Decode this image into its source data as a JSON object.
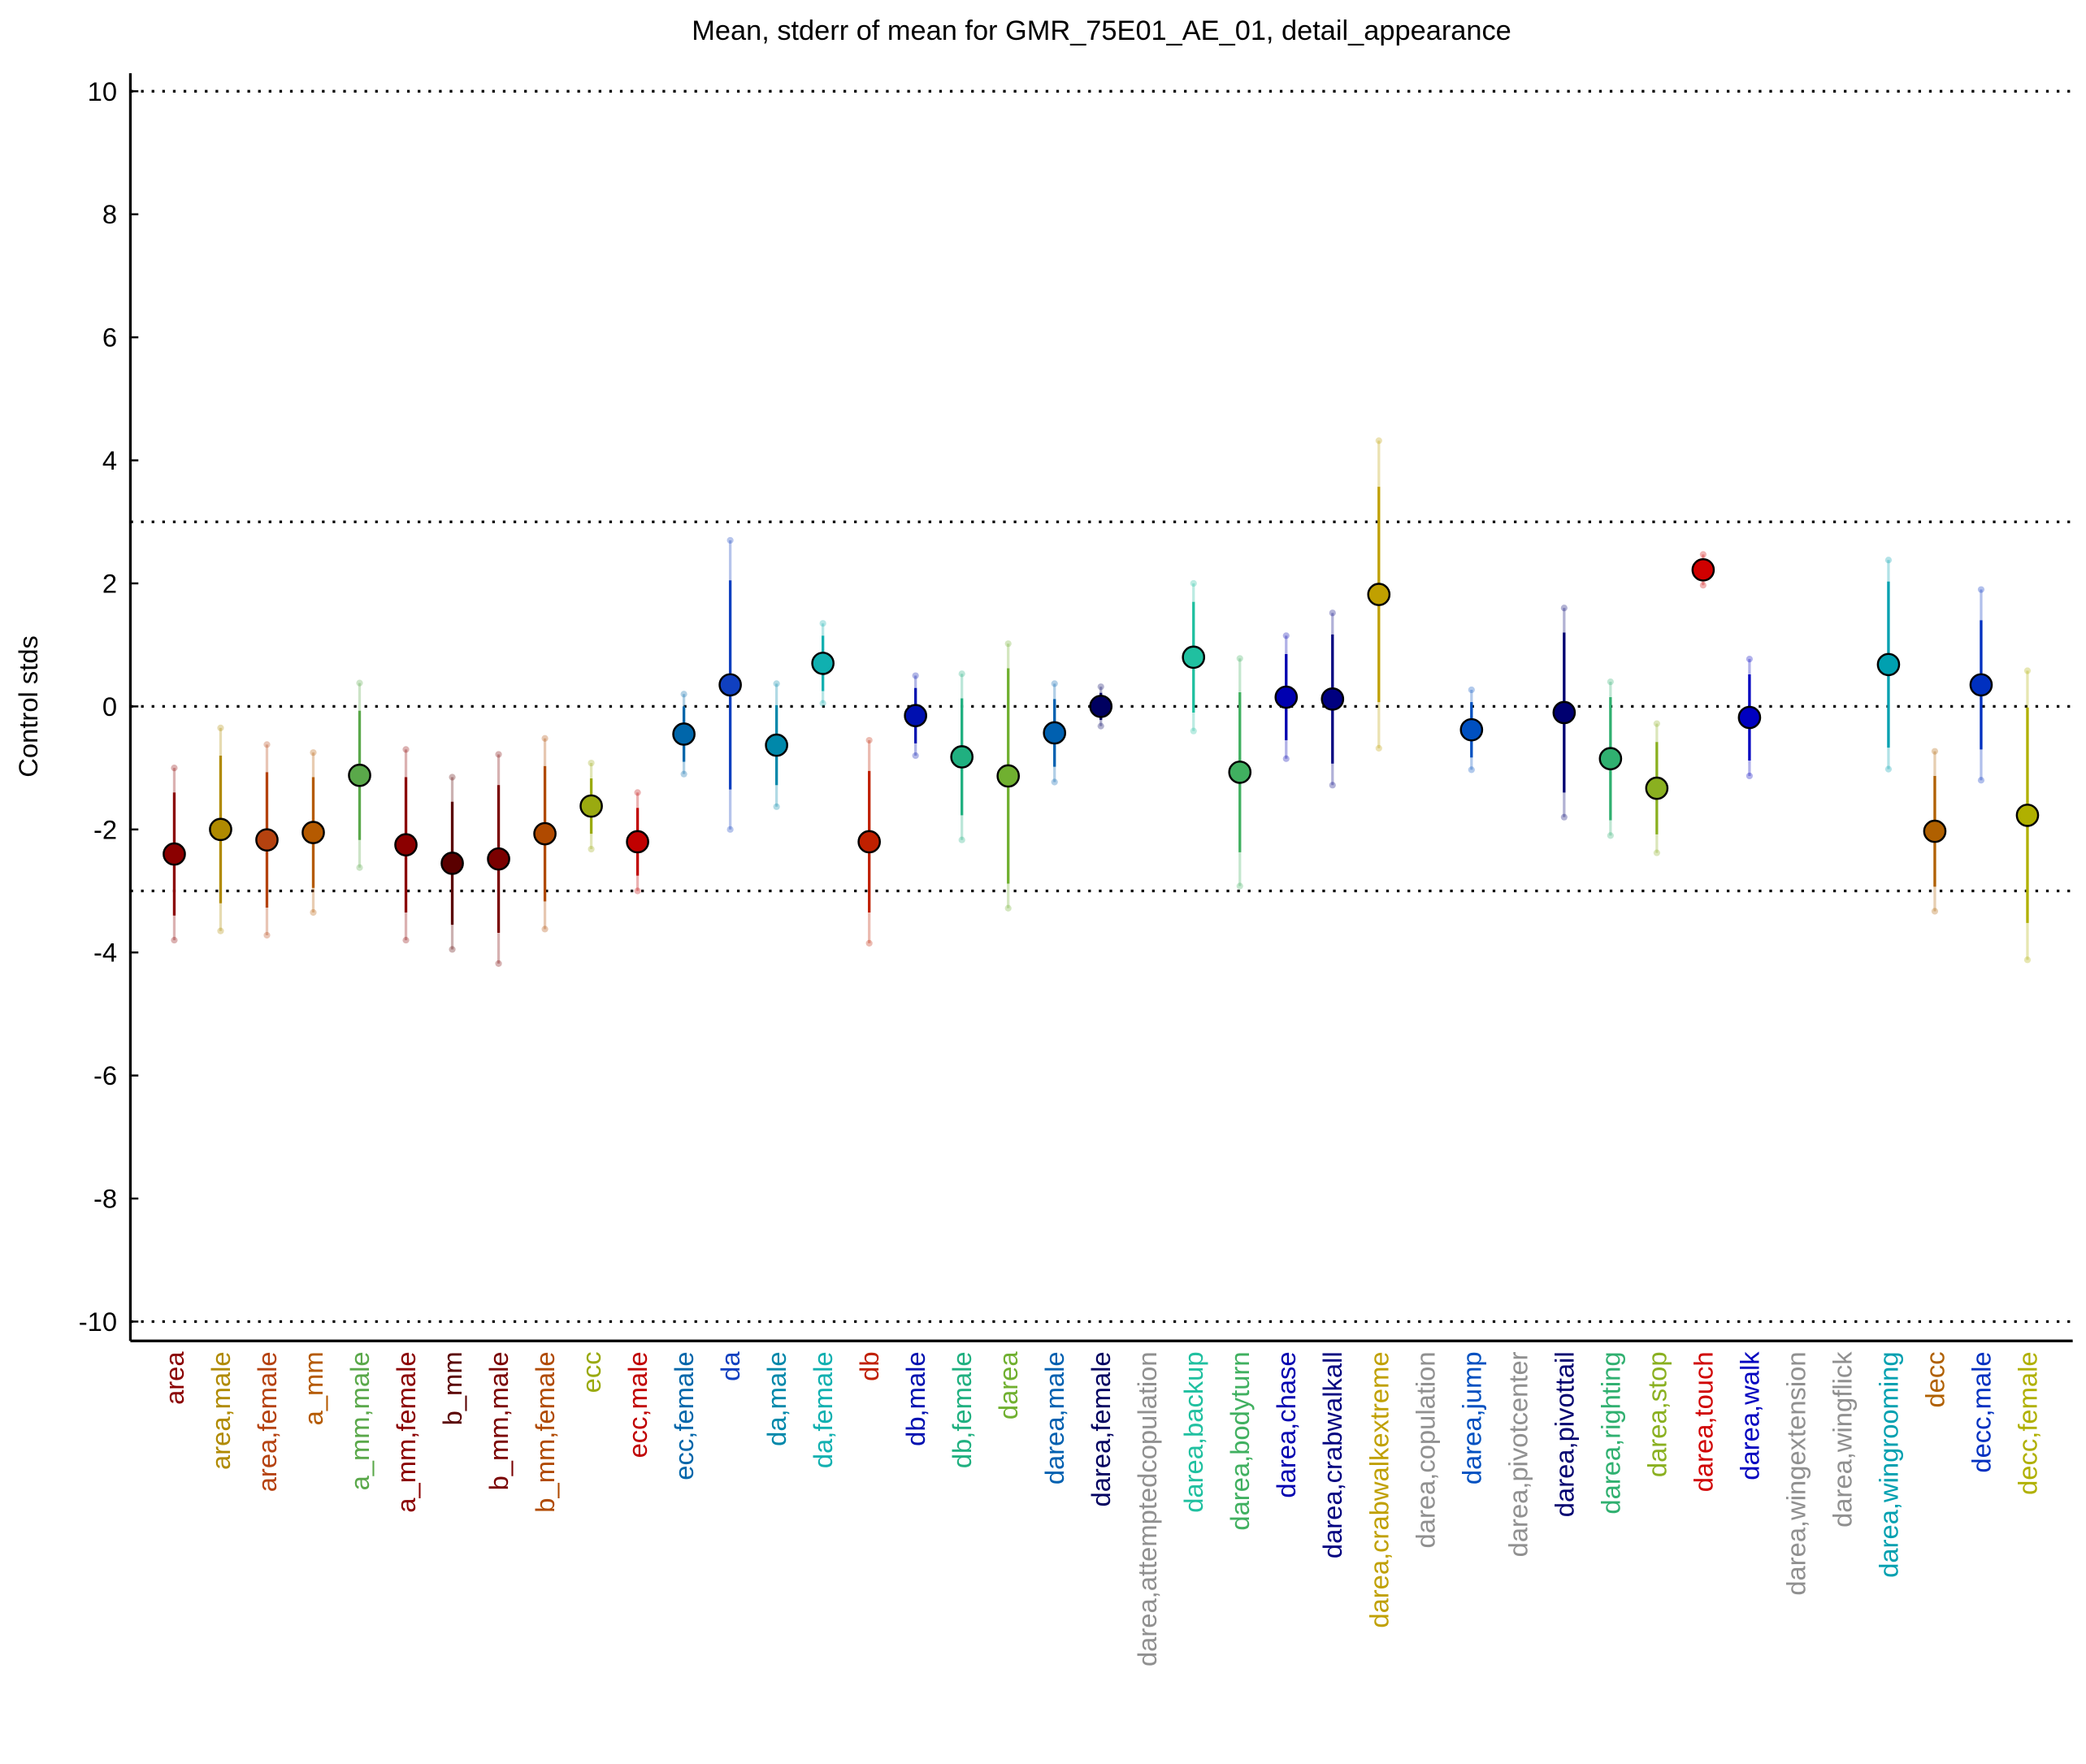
{
  "chart_data": {
    "type": "errorbar",
    "title": "Mean, stderr of mean for GMR_75E01_AE_01, detail_appearance",
    "ylabel": "Control stds",
    "categories": [
      "area",
      "area,male",
      "area,female",
      "a_mm",
      "a_mm,male",
      "a_mm,female",
      "b_mm",
      "b_mm,male",
      "b_mm,female",
      "ecc",
      "ecc,male",
      "ecc,female",
      "da",
      "da,male",
      "da,female",
      "db",
      "db,male",
      "db,female",
      "darea",
      "darea,male",
      "darea,female",
      "darea,attemptedcopulation",
      "darea,backup",
      "darea,bodyturn",
      "darea,chase",
      "darea,crabwalkall",
      "darea,crabwalkextreme",
      "darea,copulation",
      "darea,jump",
      "darea,pivotcenter",
      "darea,pivottail",
      "darea,righting",
      "darea,stop",
      "darea,touch",
      "darea,walk",
      "darea,wingextension",
      "darea,wingflick",
      "darea,wingrooming",
      "decc",
      "decc,male",
      "decc,female"
    ],
    "values": [
      -2.4,
      -2.0,
      -2.17,
      -2.05,
      -1.12,
      -2.25,
      -2.55,
      -2.48,
      -2.07,
      -1.62,
      -2.2,
      -0.45,
      0.35,
      -0.63,
      0.7,
      -2.2,
      -0.15,
      -0.82,
      -1.13,
      -0.43,
      0.0,
      null,
      0.8,
      -1.07,
      0.15,
      0.12,
      1.82,
      null,
      -0.38,
      null,
      -0.1,
      -0.85,
      -1.33,
      2.22,
      -0.18,
      null,
      null,
      0.68,
      -2.03,
      0.35,
      -1.77
    ],
    "stderr": [
      1.0,
      1.2,
      1.1,
      0.9,
      1.05,
      1.1,
      1.0,
      1.2,
      1.1,
      0.45,
      0.55,
      0.45,
      1.7,
      0.65,
      0.45,
      1.15,
      0.45,
      0.95,
      1.75,
      0.55,
      0.22,
      null,
      0.9,
      1.3,
      0.7,
      1.05,
      1.75,
      null,
      0.45,
      null,
      1.3,
      1.0,
      0.75,
      0.18,
      0.7,
      null,
      null,
      1.35,
      0.9,
      1.05,
      1.75
    ],
    "spread": [
      1.4,
      1.65,
      1.55,
      1.3,
      1.5,
      1.55,
      1.4,
      1.7,
      1.55,
      0.7,
      0.8,
      0.65,
      2.35,
      1.0,
      0.65,
      1.65,
      0.65,
      1.35,
      2.15,
      0.8,
      0.32,
      null,
      1.2,
      1.85,
      1.0,
      1.4,
      2.5,
      null,
      0.65,
      null,
      1.7,
      1.25,
      1.05,
      0.25,
      0.95,
      null,
      null,
      1.7,
      1.3,
      1.55,
      2.35
    ],
    "colors": [
      "#8b0000",
      "#b08a00",
      "#b5420f",
      "#b55a00",
      "#5aa84a",
      "#8b0000",
      "#5a0000",
      "#7a0000",
      "#b04a00",
      "#9aaa10",
      "#c00000",
      "#0066aa",
      "#1040c0",
      "#0088aa",
      "#10b0b0",
      "#c02000",
      "#0010b0",
      "#20b080",
      "#70b030",
      "#0060b0",
      "#000060",
      "#909090",
      "#20c0a0",
      "#40b060",
      "#0000b0",
      "#000080",
      "#c0a000",
      "#909090",
      "#0050c0",
      "#909090",
      "#000070",
      "#30b070",
      "#8ab020",
      "#d00000",
      "#0000c0",
      "#909090",
      "#909090",
      "#00a0b0",
      "#b06000",
      "#0030c0",
      "#b0b000"
    ],
    "ylim": [
      -10.2,
      10.2
    ],
    "yticks": [
      -10,
      -8,
      -6,
      -4,
      -2,
      0,
      2,
      4,
      6,
      8,
      10
    ],
    "reference_lines": [
      -10,
      -3,
      0,
      3,
      10
    ]
  }
}
